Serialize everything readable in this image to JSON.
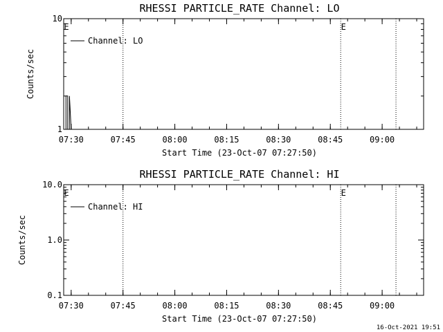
{
  "footer_timestamp": "16-Oct-2021 19:51",
  "chart_data": [
    {
      "type": "line",
      "title": "RHESSI PARTICLE_RATE Channel: LO",
      "xlabel": "Start Time (23-Oct-07 07:27:50)",
      "ylabel": "Counts/sec",
      "yscale": "log",
      "ylim": [
        1,
        10
      ],
      "ytick_labels": [
        "10",
        "1"
      ],
      "ytick_values": [
        10,
        1
      ],
      "xtick_labels": [
        "07:30",
        "07:45",
        "08:00",
        "08:15",
        "08:30",
        "08:45",
        "09:00"
      ],
      "xtick_values": [
        "07:30",
        "07:45",
        "08:00",
        "08:15",
        "08:30",
        "08:45",
        "09:00"
      ],
      "xlim": [
        "07:27:50",
        "09:12"
      ],
      "legend_label": "Channel: LO",
      "legend_position": "top-left",
      "markers": [
        {
          "label": "E",
          "time": "07:27:50"
        },
        {
          "label": "E",
          "time": "08:48"
        }
      ],
      "vertical_lines": [
        "07:45",
        "08:48",
        "09:04"
      ],
      "series": [
        {
          "name": "Channel: LO",
          "x": [
            "07:28",
            "07:28:30",
            "07:28:30",
            "07:29",
            "07:29",
            "07:29:30",
            "07:29:30",
            "07:30"
          ],
          "y": [
            1,
            1,
            2,
            2,
            1,
            1,
            2,
            1
          ]
        }
      ]
    },
    {
      "type": "line",
      "title": "RHESSI PARTICLE_RATE Channel: HI",
      "xlabel": "Start Time (23-Oct-07 07:27:50)",
      "ylabel": "Counts/sec",
      "yscale": "log",
      "ylim": [
        0.1,
        10
      ],
      "ytick_labels": [
        "10.0",
        "1.0",
        "0.1"
      ],
      "ytick_values": [
        10,
        1,
        0.1
      ],
      "xtick_labels": [
        "07:30",
        "07:45",
        "08:00",
        "08:15",
        "08:30",
        "08:45",
        "09:00"
      ],
      "xtick_values": [
        "07:30",
        "07:45",
        "08:00",
        "08:15",
        "08:30",
        "08:45",
        "09:00"
      ],
      "xlim": [
        "07:27:50",
        "09:12"
      ],
      "legend_label": "Channel: HI",
      "legend_position": "top-left",
      "markers": [
        {
          "label": "E",
          "time": "07:27:50"
        },
        {
          "label": "E",
          "time": "08:48"
        }
      ],
      "vertical_lines": [
        "07:45",
        "08:48",
        "09:04"
      ],
      "series": [
        {
          "name": "Channel: HI",
          "x": [],
          "y": []
        }
      ]
    }
  ]
}
